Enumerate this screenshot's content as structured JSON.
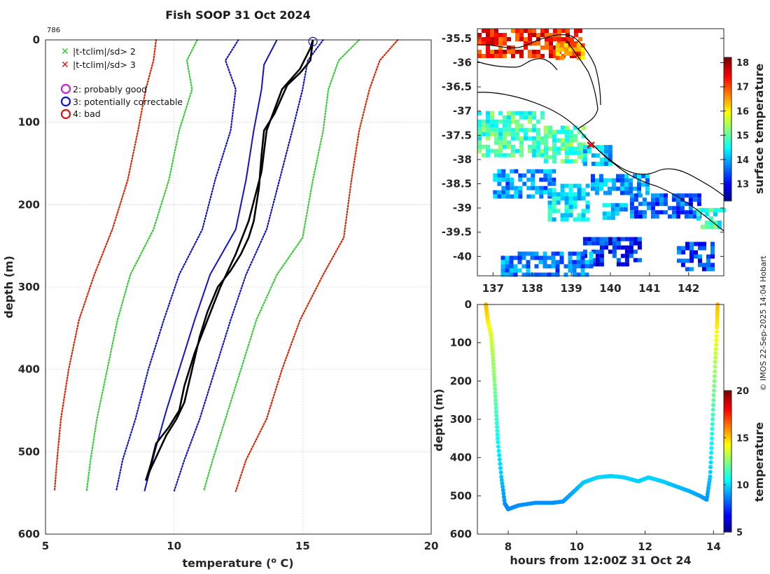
{
  "chart_data": [
    {
      "type": "line",
      "title": "Fish SOOP 31 Oct 2024",
      "profile_id": "786",
      "xlabel": "temperature (",
      "xlabel_sup": "o",
      "xlabel_tail": " C)",
      "ylabel": "depth (m)",
      "xlim": [
        5,
        20
      ],
      "ylim": [
        0,
        600
      ],
      "xticks": [
        5,
        10,
        15,
        20
      ],
      "yticks": [
        0,
        100,
        200,
        300,
        400,
        500,
        600
      ],
      "legend": [
        {
          "marker": "x",
          "color": "#22cc22",
          "label": "|t-tclim|/sd> 2"
        },
        {
          "marker": "x",
          "color": "#dd1111",
          "label": "|t-tclim|/sd> 3"
        },
        {
          "marker": "o",
          "color": "#cc22cc",
          "label": "2: probably good"
        },
        {
          "marker": "o",
          "color": "#1111cc",
          "label": "3: potentially correctable"
        },
        {
          "marker": "o",
          "color": "#dd1111",
          "label": "4: bad"
        }
      ],
      "series": [
        {
          "name": "clim -3sd",
          "color": "#dd2200",
          "style": "dotted",
          "points": [
            [
              9.3,
              0
            ],
            [
              9.2,
              25
            ],
            [
              8.9,
              60
            ],
            [
              8.6,
              110
            ],
            [
              8.2,
              170
            ],
            [
              7.6,
              230
            ],
            [
              6.9,
              285
            ],
            [
              6.3,
              340
            ],
            [
              5.9,
              400
            ],
            [
              5.6,
              460
            ],
            [
              5.45,
              510
            ],
            [
              5.35,
              548
            ]
          ]
        },
        {
          "name": "clim -2sd",
          "color": "#33cc33",
          "style": "dotted",
          "points": [
            [
              10.9,
              0
            ],
            [
              10.5,
              25
            ],
            [
              10.7,
              60
            ],
            [
              10.2,
              110
            ],
            [
              9.8,
              170
            ],
            [
              9.2,
              230
            ],
            [
              8.3,
              285
            ],
            [
              7.8,
              340
            ],
            [
              7.4,
              400
            ],
            [
              7.0,
              460
            ],
            [
              6.75,
              510
            ],
            [
              6.6,
              548
            ]
          ]
        },
        {
          "name": "clim -1sd",
          "color": "#1111cc",
          "style": "dotted",
          "points": [
            [
              12.5,
              0
            ],
            [
              12.0,
              25
            ],
            [
              12.4,
              60
            ],
            [
              12.2,
              110
            ],
            [
              11.6,
              170
            ],
            [
              11.1,
              230
            ],
            [
              10.2,
              285
            ],
            [
              9.6,
              340
            ],
            [
              9.0,
              400
            ],
            [
              8.5,
              460
            ],
            [
              8.0,
              510
            ],
            [
              7.75,
              548
            ]
          ]
        },
        {
          "name": "clim mean",
          "color": "#1111cc",
          "style": "solid",
          "points": [
            [
              14.0,
              0
            ],
            [
              13.5,
              30
            ],
            [
              13.4,
              60
            ],
            [
              13.1,
              110
            ],
            [
              12.8,
              170
            ],
            [
              12.4,
              230
            ],
            [
              11.4,
              285
            ],
            [
              10.8,
              340
            ],
            [
              10.2,
              400
            ],
            [
              9.7,
              450
            ],
            [
              9.25,
              500
            ],
            [
              8.85,
              548
            ]
          ]
        },
        {
          "name": "clim +1sd",
          "color": "#1111cc",
          "style": "dotted",
          "points": [
            [
              15.8,
              0
            ],
            [
              15.2,
              25
            ],
            [
              15.0,
              60
            ],
            [
              14.6,
              110
            ],
            [
              14.1,
              170
            ],
            [
              13.6,
              230
            ],
            [
              12.8,
              285
            ],
            [
              12.2,
              340
            ],
            [
              11.6,
              400
            ],
            [
              11.0,
              460
            ],
            [
              10.4,
              510
            ],
            [
              10.0,
              548
            ]
          ]
        },
        {
          "name": "clim +2sd",
          "color": "#33cc33",
          "style": "dotted",
          "points": [
            [
              17.2,
              0
            ],
            [
              16.4,
              25
            ],
            [
              16.0,
              60
            ],
            [
              15.8,
              110
            ],
            [
              15.4,
              170
            ],
            [
              15.0,
              240
            ],
            [
              14.0,
              285
            ],
            [
              13.2,
              340
            ],
            [
              12.6,
              400
            ],
            [
              12.0,
              460
            ],
            [
              11.5,
              510
            ],
            [
              11.15,
              548
            ]
          ]
        },
        {
          "name": "clim +3sd",
          "color": "#dd2200",
          "style": "dotted",
          "points": [
            [
              18.7,
              0
            ],
            [
              18.0,
              25
            ],
            [
              17.6,
              60
            ],
            [
              17.2,
              110
            ],
            [
              16.9,
              170
            ],
            [
              16.6,
              240
            ],
            [
              15.8,
              285
            ],
            [
              14.9,
              340
            ],
            [
              14.2,
              400
            ],
            [
              13.6,
              460
            ],
            [
              12.8,
              510
            ],
            [
              12.4,
              548
            ]
          ]
        },
        {
          "name": "profile down",
          "color": "#000000",
          "style": "solid",
          "points": [
            [
              15.4,
              0
            ],
            [
              15.3,
              25
            ],
            [
              14.9,
              40
            ],
            [
              14.4,
              55
            ],
            [
              13.9,
              90
            ],
            [
              13.5,
              110
            ],
            [
              13.4,
              140
            ],
            [
              13.3,
              180
            ],
            [
              13.1,
              220
            ],
            [
              12.9,
              240
            ],
            [
              12.6,
              260
            ],
            [
              12.2,
              280
            ],
            [
              11.7,
              300
            ],
            [
              11.3,
              330
            ],
            [
              11.0,
              360
            ],
            [
              10.7,
              400
            ],
            [
              10.4,
              440
            ],
            [
              10.1,
              460
            ],
            [
              9.7,
              480
            ],
            [
              9.4,
              500
            ],
            [
              9.1,
              520
            ],
            [
              8.9,
              535
            ]
          ]
        },
        {
          "name": "profile up",
          "color": "#000000",
          "style": "solid",
          "points": [
            [
              8.9,
              535
            ],
            [
              9.1,
              515
            ],
            [
              9.3,
              490
            ],
            [
              9.8,
              470
            ],
            [
              10.2,
              450
            ],
            [
              10.4,
              420
            ],
            [
              10.8,
              380
            ],
            [
              11.3,
              340
            ],
            [
              11.8,
              300
            ],
            [
              12.4,
              260
            ],
            [
              12.9,
              220
            ],
            [
              13.4,
              160
            ],
            [
              13.6,
              110
            ],
            [
              14.2,
              60
            ],
            [
              14.9,
              35
            ],
            [
              15.3,
              10
            ],
            [
              15.4,
              0
            ]
          ]
        }
      ],
      "flag_marker": {
        "color": "#1111cc",
        "temperature": 15.4,
        "depth": 2
      }
    },
    {
      "type": "heatmap",
      "colorbar_label": "surface temperature",
      "colorbar_range": [
        12.3,
        18.2
      ],
      "colorbar_ticks": [
        13,
        14,
        15,
        16,
        17,
        18
      ],
      "xlim": [
        136.6,
        142.9
      ],
      "ylim": [
        -40.4,
        -35.3
      ],
      "xticks": [
        137,
        138,
        139,
        140,
        141,
        142
      ],
      "yticks": [
        -35.5,
        -36,
        -36.5,
        -37,
        -37.5,
        -38,
        -38.5,
        -39,
        -39.5,
        -40
      ],
      "xtick_labels": [
        "137",
        "138",
        "139",
        "140",
        "141",
        "142"
      ],
      "ytick_labels": [
        "-35.5",
        "-36",
        "-36.5",
        "-37",
        "-37.5",
        "-38",
        "-38.5",
        "-39",
        "-39.5",
        "-40"
      ],
      "patches": [
        {
          "lon": [
            136.6,
            139.2
          ],
          "lat": [
            -35.9,
            -35.3
          ],
          "value": 17.3
        },
        {
          "lon": [
            138.6,
            139.3
          ],
          "lat": [
            -35.9,
            -35.6
          ],
          "value": 16.6
        },
        {
          "lon": [
            136.6,
            138.3
          ],
          "lat": [
            -37.9,
            -37.0
          ],
          "value": 14.9
        },
        {
          "lon": [
            138.3,
            139.3
          ],
          "lat": [
            -38.0,
            -37.3
          ],
          "value": 15.0
        },
        {
          "lon": [
            139.3,
            140.0
          ],
          "lat": [
            -38.1,
            -37.7
          ],
          "value": 14.2
        },
        {
          "lon": [
            137.0,
            138.6
          ],
          "lat": [
            -38.8,
            -38.2
          ],
          "value": 13.9
        },
        {
          "lon": [
            138.4,
            139.4
          ],
          "lat": [
            -39.2,
            -38.5
          ],
          "value": 14.4
        },
        {
          "lon": [
            139.5,
            140.9
          ],
          "lat": [
            -38.7,
            -38.3
          ],
          "value": 13.9
        },
        {
          "lon": [
            140.5,
            142.3
          ],
          "lat": [
            -39.2,
            -38.7
          ],
          "value": 13.6
        },
        {
          "lon": [
            142.2,
            142.9
          ],
          "lat": [
            -39.4,
            -39.0
          ],
          "value": 14.8
        },
        {
          "lon": [
            139.3,
            140.8
          ],
          "lat": [
            -40.2,
            -39.6
          ],
          "value": 13.2
        },
        {
          "lon": [
            137.2,
            139.5
          ],
          "lat": [
            -40.4,
            -39.9
          ],
          "value": 13.8
        },
        {
          "lon": [
            141.7,
            142.6
          ],
          "lat": [
            -40.3,
            -39.7
          ],
          "value": 13.4
        },
        {
          "lon": [
            139.8,
            140.4
          ],
          "lat": [
            -39.2,
            -38.9
          ],
          "value": 14.1
        }
      ],
      "cruise_marker": {
        "lon": 139.5,
        "lat": -37.7,
        "color": "#dd1111"
      }
    },
    {
      "type": "scatter",
      "xlabel": "hours from 12:00Z 31 Oct 24",
      "ylabel": "depth (m)",
      "colorbar_label": "temperature",
      "colorbar_range": [
        5,
        20
      ],
      "colorbar_ticks": [
        5,
        10,
        15,
        20
      ],
      "xlim": [
        7.1,
        14.3
      ],
      "ylim": [
        0,
        600
      ],
      "xticks": [
        8,
        10,
        12,
        14
      ],
      "yticks": [
        0,
        100,
        200,
        300,
        400,
        500,
        600
      ],
      "track": [
        [
          7.35,
          0,
          15.4
        ],
        [
          7.4,
          40,
          14.8
        ],
        [
          7.5,
          80,
          13.8
        ],
        [
          7.55,
          130,
          13.2
        ],
        [
          7.6,
          200,
          12.6
        ],
        [
          7.65,
          280,
          11.6
        ],
        [
          7.7,
          360,
          10.6
        ],
        [
          7.8,
          450,
          9.8
        ],
        [
          7.9,
          520,
          9.0
        ],
        [
          8.0,
          535,
          8.9
        ],
        [
          8.3,
          525,
          9.0
        ],
        [
          8.8,
          518,
          9.0
        ],
        [
          9.3,
          518,
          9.0
        ],
        [
          9.6,
          515,
          9.1
        ],
        [
          9.9,
          490,
          9.4
        ],
        [
          10.2,
          465,
          9.8
        ],
        [
          10.6,
          452,
          10.0
        ],
        [
          11.0,
          448,
          10.0
        ],
        [
          11.4,
          452,
          10.0
        ],
        [
          11.8,
          462,
          9.9
        ],
        [
          12.1,
          452,
          10.0
        ],
        [
          12.5,
          462,
          9.9
        ],
        [
          12.9,
          475,
          9.7
        ],
        [
          13.3,
          488,
          9.5
        ],
        [
          13.6,
          500,
          9.3
        ],
        [
          13.8,
          510,
          9.1
        ],
        [
          13.9,
          450,
          9.8
        ],
        [
          13.95,
          350,
          10.8
        ],
        [
          14.0,
          250,
          12.0
        ],
        [
          14.05,
          150,
          13.2
        ],
        [
          14.1,
          60,
          14.6
        ],
        [
          14.12,
          0,
          15.4
        ]
      ]
    }
  ],
  "side_text": "© IMOS 22-Sep-2025 14:04 Hobart"
}
